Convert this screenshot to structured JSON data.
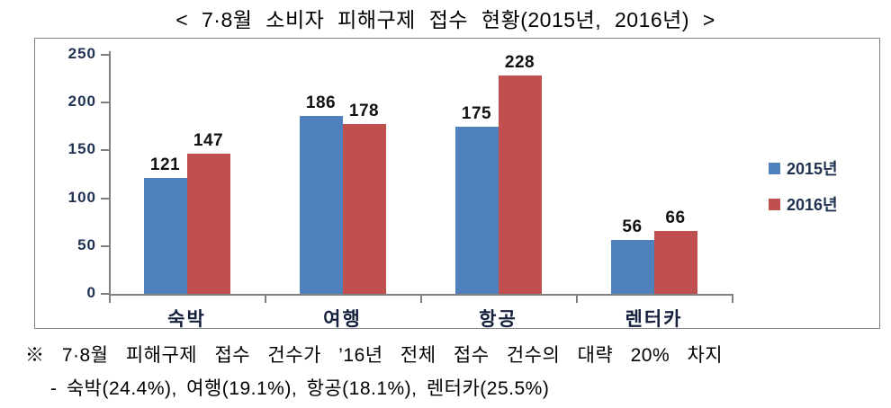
{
  "title": "< 7·8월 소비자 피해구제 접수 현황(2015년, 2016년) >",
  "chart_data": {
    "type": "bar",
    "title": "< 7·8월 소비자 피해구제 접수 현황(2015년, 2016년) >",
    "categories": [
      "숙박",
      "여행",
      "항공",
      "렌터카"
    ],
    "series": [
      {
        "name": "2015년",
        "color": "#4F81BD",
        "values": [
          121,
          186,
          175,
          56
        ]
      },
      {
        "name": "2016년",
        "color": "#C0504D",
        "values": [
          147,
          178,
          228,
          66
        ]
      }
    ],
    "xlabel": "",
    "ylabel": "",
    "ylim": [
      0,
      250
    ],
    "yticks": [
      0,
      50,
      100,
      150,
      200,
      250
    ],
    "grid": false,
    "legend_position": "right",
    "data_labels": true
  },
  "colors": {
    "series_2015": "#4F81BD",
    "series_2016": "#C0504D",
    "axis_line": "#808080",
    "frame_border": "#858585",
    "tick_label_text": "#1f3250",
    "data_label_text": "#111111",
    "title_text": "#000000"
  },
  "footnote": {
    "line1": "※ 7·8월 피해구제 접수 건수가 ’16년 전체 접수 건수의 대략 20% 차지",
    "line2": "- 숙박(24.4%), 여행(19.1%), 항공(18.1%), 렌터카(25.5%)"
  }
}
